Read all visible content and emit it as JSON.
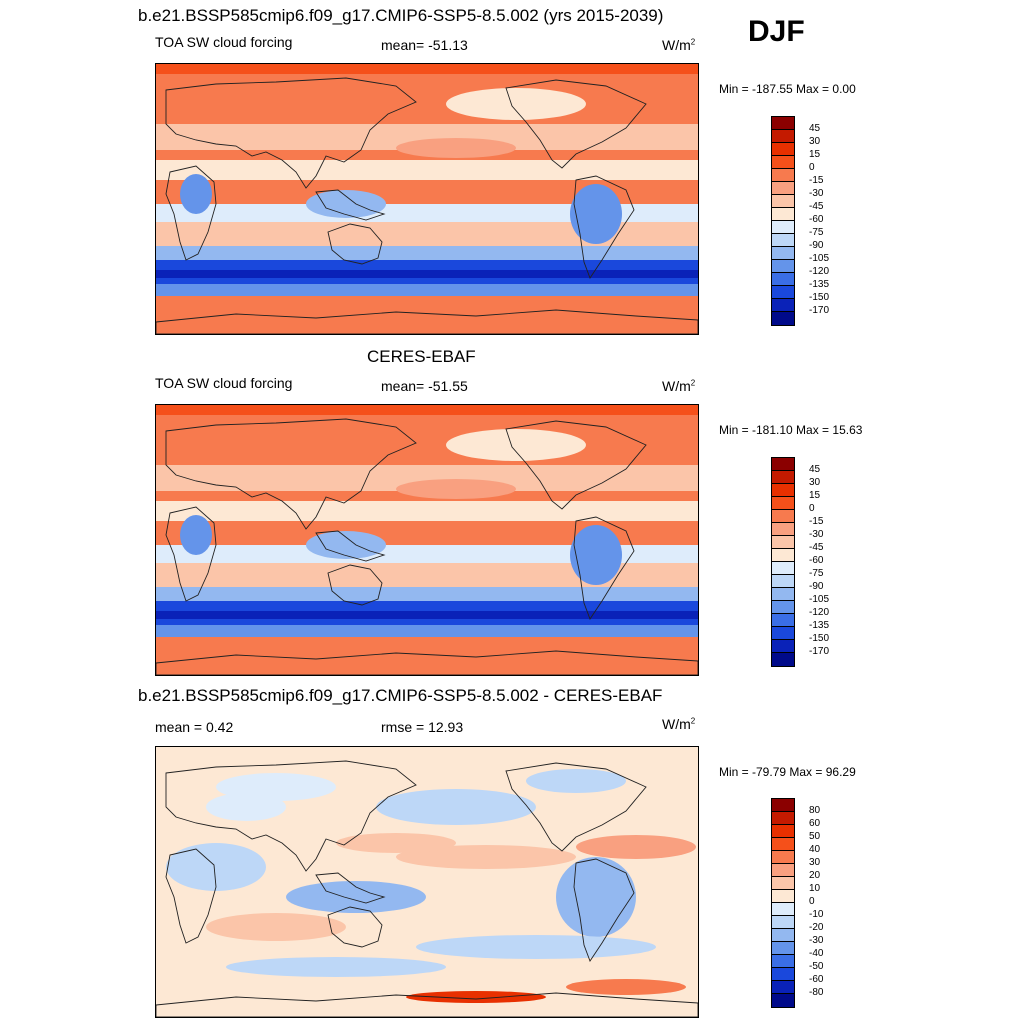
{
  "header": {
    "title": "b.e21.BSSP585cmip6.f09_g17.CMIP6-SSP5-8.5.002 (yrs 2015-2039)",
    "season": "DJF"
  },
  "panels": [
    {
      "id": "model",
      "title": "",
      "left": "TOA SW cloud forcing",
      "center": "mean= -51.13",
      "units_base": "W/m",
      "units_exp": "2",
      "minmax": "Min = -187.55 Max =   0.00",
      "levels": [
        "45",
        "30",
        "15",
        "0",
        "-15",
        "-30",
        "-45",
        "-60",
        "-75",
        "-90",
        "-105",
        "-120",
        "-135",
        "-150",
        "-170"
      ]
    },
    {
      "id": "obs",
      "title": "CERES-EBAF",
      "left": "TOA SW cloud forcing",
      "center": "mean= -51.55",
      "units_base": "W/m",
      "units_exp": "2",
      "minmax": "Min = -181.10 Max =  15.63",
      "levels": [
        "45",
        "30",
        "15",
        "0",
        "-15",
        "-30",
        "-45",
        "-60",
        "-75",
        "-90",
        "-105",
        "-120",
        "-135",
        "-150",
        "-170"
      ]
    },
    {
      "id": "diff",
      "title": "b.e21.BSSP585cmip6.f09_g17.CMIP6-SSP5-8.5.002 - CERES-EBAF",
      "left": "mean =   0.42",
      "center": "rmse =  12.93",
      "units_base": "W/m",
      "units_exp": "2",
      "minmax": "Min = -79.79 Max =  96.29",
      "levels": [
        "80",
        "60",
        "50",
        "40",
        "30",
        "20",
        "10",
        "0",
        "-10",
        "-20",
        "-30",
        "-40",
        "-50",
        "-60",
        "-80"
      ]
    }
  ],
  "colors": {
    "swatches": [
      "#8b0000",
      "#c41a00",
      "#e83000",
      "#f5501a",
      "#f77a4e",
      "#f9a080",
      "#fbc5a9",
      "#fde8d4",
      "#deecfb",
      "#bdd7f7",
      "#93b8f0",
      "#6494ea",
      "#3a6ee6",
      "#1a48dc",
      "#0a22b8",
      "#000a8a"
    ],
    "land": "#e97050",
    "coast": "#222222"
  }
}
